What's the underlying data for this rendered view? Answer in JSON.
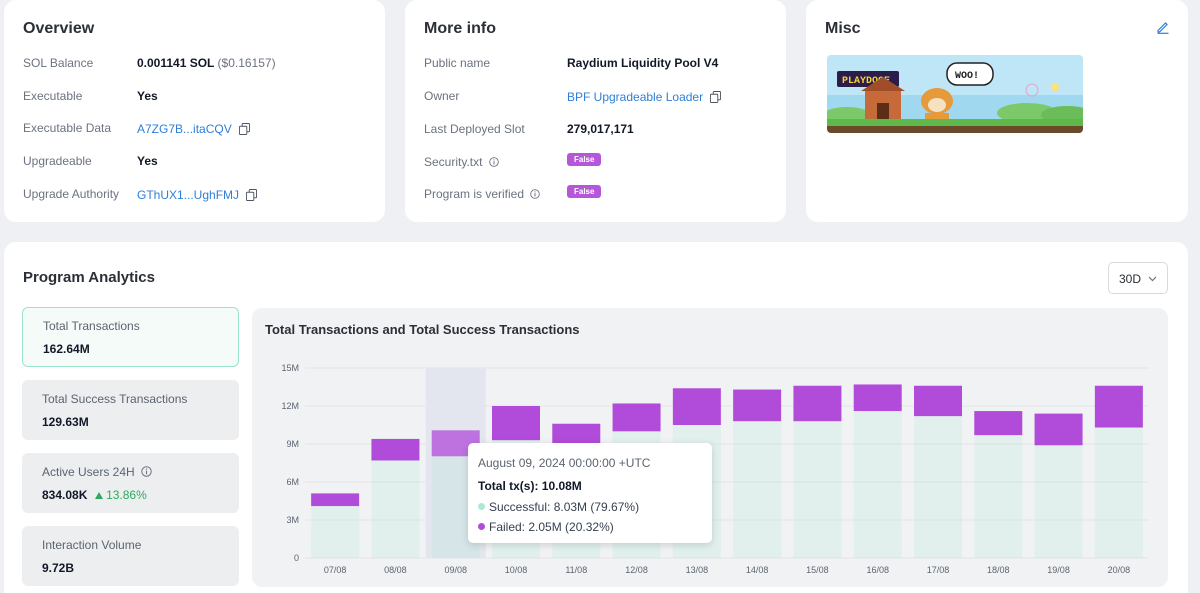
{
  "overview": {
    "title": "Overview",
    "rows": [
      {
        "label": "SOL Balance",
        "value": "0.001141 SOL",
        "sub": "($0.16157)"
      },
      {
        "label": "Executable",
        "value": "Yes"
      },
      {
        "label": "Executable Data",
        "value": "A7ZG7B...itaCQV"
      },
      {
        "label": "Upgradeable",
        "value": "Yes"
      },
      {
        "label": "Upgrade Authority",
        "value": "GThUX1...UghFMJ"
      }
    ]
  },
  "more_info": {
    "title": "More info",
    "rows": [
      {
        "label": "Public name",
        "value": "Raydium Liquidity Pool V4"
      },
      {
        "label": "Owner",
        "value": "BPF Upgradeable Loader"
      },
      {
        "label": "Last Deployed Slot",
        "value": "279,017,171"
      },
      {
        "label": "Security.txt",
        "value": "False"
      },
      {
        "label": "Program is verified",
        "value": "False"
      }
    ]
  },
  "misc": {
    "title": "Misc",
    "banner_text": {
      "logo": "PLAYDOGE",
      "bubble": "WOO!"
    }
  },
  "analytics": {
    "title": "Program Analytics",
    "range": "30D",
    "stats": [
      {
        "label": "Total Transactions",
        "value": "162.64M"
      },
      {
        "label": "Total Success Transactions",
        "value": "129.63M"
      },
      {
        "label": "Active Users 24H",
        "value": "834.08K",
        "delta": "13.86%"
      },
      {
        "label": "Interaction Volume",
        "value": "9.72B"
      }
    ]
  },
  "tooltip": {
    "date": "August 09, 2024 00:00:00 +UTC",
    "total": "Total tx(s): 10.08M",
    "successful": "Successful: 8.03M (79.67%)",
    "failed": "Failed: 2.05M (20.32%)"
  },
  "colors": {
    "success": "#a7ead5",
    "failed": "#b14bd9",
    "link": "#2f7fd8",
    "accent_border": "#9be3cb"
  },
  "chart_data": {
    "type": "bar",
    "title": "Total Transactions and Total Success Transactions",
    "categories": [
      "07/08",
      "08/08",
      "09/08",
      "10/08",
      "11/08",
      "12/08",
      "13/08",
      "14/08",
      "15/08",
      "16/08",
      "17/08",
      "18/08",
      "19/08",
      "20/08"
    ],
    "y_ticks": [
      "0",
      "3M",
      "6M",
      "9M",
      "12M",
      "15M"
    ],
    "ylim": [
      0,
      15
    ],
    "y_unit": "M",
    "series": [
      {
        "name": "Successful",
        "values": [
          4.1,
          7.7,
          8.03,
          9.3,
          8.9,
          10.0,
          10.5,
          10.8,
          10.8,
          11.6,
          11.2,
          9.7,
          8.9,
          10.3
        ]
      },
      {
        "name": "Failed",
        "values": [
          1.0,
          1.7,
          2.05,
          2.7,
          1.7,
          2.2,
          2.9,
          2.5,
          2.8,
          2.1,
          2.4,
          1.9,
          2.5,
          3.3
        ]
      }
    ],
    "highlight_index": 2
  }
}
